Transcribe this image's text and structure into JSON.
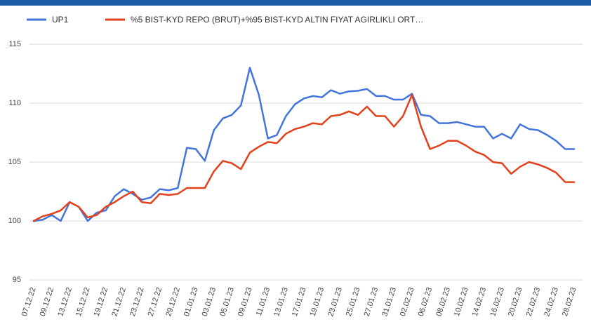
{
  "chart_data": {
    "type": "line",
    "categories": [
      "07.12.22",
      null,
      "09.12.22",
      null,
      "13.12.22",
      null,
      "15.12.22",
      null,
      "19.12.22",
      null,
      "21.12.22",
      null,
      "23.12.22",
      null,
      "27.12.22",
      null,
      "29.12.22",
      null,
      "01.01.23",
      null,
      "03.01.23",
      null,
      "05.01.23",
      null,
      "09.01.23",
      null,
      "11.01.23",
      null,
      "13.01.23",
      null,
      "17.01.23",
      null,
      "19.01.23",
      null,
      "23.01.23",
      null,
      "25.01.23",
      null,
      "27.01.23",
      null,
      "31.01.23",
      null,
      "02.02.23",
      null,
      "06.02.23",
      null,
      "08.02.23",
      null,
      "10.02.23",
      null,
      "14.02.23",
      null,
      "16.02.23",
      null,
      "20.02.23",
      null,
      "22.02.23",
      null,
      "24.02.23",
      null,
      "28.02.23"
    ],
    "series": [
      {
        "name": "UP1",
        "color": "#4275db",
        "values": [
          100,
          100.1,
          100.5,
          100,
          101.6,
          101.2,
          100,
          100.7,
          100.9,
          102.1,
          102.7,
          102.3,
          101.8,
          102,
          102.7,
          102.6,
          102.8,
          106.2,
          106.1,
          105.1,
          107.7,
          108.7,
          109,
          109.8,
          113,
          110.7,
          107,
          107.3,
          108.9,
          109.9,
          110.4,
          110.6,
          110.5,
          111.1,
          110.8,
          111,
          111.05,
          111.2,
          110.6,
          110.6,
          110.3,
          110.3,
          110.8,
          109,
          108.9,
          108.3,
          108.3,
          108.4,
          108.2,
          108,
          108,
          107,
          107.4,
          107,
          108.2,
          107.8,
          107.7,
          107.3,
          106.8,
          106.1,
          106.1
        ]
      },
      {
        "name": "%5 BIST-KYD REPO (BRUT)+%95 BIST-KYD ALTIN FIYAT AGIRLIKLI ORT…",
        "color": "#e2411c",
        "values": [
          100,
          100.4,
          100.6,
          100.9,
          101.6,
          101.2,
          100.3,
          100.5,
          101.2,
          101.6,
          102.1,
          102.5,
          101.6,
          101.5,
          102.3,
          102.2,
          102.3,
          102.8,
          102.8,
          102.8,
          104.2,
          105.1,
          104.9,
          104.4,
          105.8,
          106.3,
          106.7,
          106.6,
          107.4,
          107.8,
          108,
          108.3,
          108.2,
          108.9,
          109,
          109.3,
          109,
          109.7,
          108.9,
          108.9,
          108,
          108.9,
          110.7,
          108,
          106.1,
          106.4,
          106.8,
          106.8,
          106.4,
          105.9,
          105.6,
          105,
          104.9,
          104,
          104.6,
          105,
          104.8,
          104.5,
          104.1,
          103.3,
          103.3
        ]
      }
    ],
    "ylim": [
      95,
      115
    ],
    "yticks": [
      95,
      100,
      105,
      110,
      115
    ],
    "grid": true
  }
}
